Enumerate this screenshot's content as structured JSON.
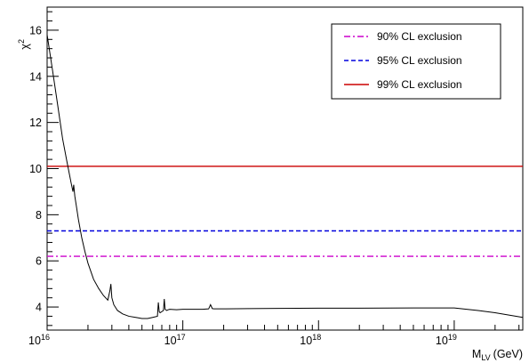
{
  "chart_data": {
    "type": "line",
    "xlabel": "M",
    "xlabel_sub": "LV",
    "xlabel_unit": "(GeV)",
    "ylabel": "χ",
    "ylabel_sup": "2",
    "x_scale": "log",
    "xlim": [
      1e+16,
      3.2e+19
    ],
    "ylim": [
      3,
      17
    ],
    "x_ticks": [
      {
        "base": "10",
        "exp": "16",
        "value": 1e+16
      },
      {
        "base": "10",
        "exp": "17",
        "value": 1e+17
      },
      {
        "base": "10",
        "exp": "18",
        "value": 1e+18
      },
      {
        "base": "10",
        "exp": "19",
        "value": 1e+19
      }
    ],
    "y_ticks": [
      {
        "label": "4",
        "value": 4
      },
      {
        "label": "6",
        "value": 6
      },
      {
        "label": "8",
        "value": 8
      },
      {
        "label": "10",
        "value": 10
      },
      {
        "label": "12",
        "value": 12
      },
      {
        "label": "14",
        "value": 14
      },
      {
        "label": "16",
        "value": 16
      }
    ],
    "grid": false,
    "legend_position": "top-right",
    "series": [
      {
        "id": "chi2",
        "color": "#000000",
        "style": "solid",
        "x": [
          1e+16,
          1.1e+16,
          1.2e+16,
          1.3e+16,
          1.4e+16,
          1.5e+16,
          1.55e+16,
          1.57e+16,
          1.6e+16,
          1.65e+16,
          1.7e+16,
          1.8e+16,
          1.9e+16,
          2e+16,
          2.2e+16,
          2.4e+16,
          2.6e+16,
          2.8e+16,
          2.9e+16,
          2.95e+16,
          3e+16,
          3.1e+16,
          3.3e+16,
          3.6e+16,
          4e+16,
          4.5e+16,
          5e+16,
          5.5e+16,
          6e+16,
          6.5e+16,
          6.6e+16,
          6.7e+16,
          6.8e+16,
          7e+16,
          7.2e+16,
          7.3e+16,
          7.4e+16,
          7.6e+16,
          7.8e+16,
          8e+16,
          9e+16,
          1e+17,
          1.2e+17,
          1.4e+17,
          1.55e+17,
          1.6e+17,
          1.65e+17,
          1.7e+17,
          2e+17,
          3e+17,
          5e+17,
          1e+18,
          2e+18,
          5e+18,
          1e+19,
          1.5e+19,
          2e+19,
          3.2e+19
        ],
        "y": [
          15.8,
          14.2,
          12.7,
          11.3,
          10.3,
          9.4,
          9.0,
          9.3,
          8.8,
          8.3,
          7.8,
          7.0,
          6.4,
          5.9,
          5.2,
          4.8,
          4.5,
          4.3,
          4.7,
          5.0,
          4.4,
          4.1,
          3.85,
          3.7,
          3.6,
          3.55,
          3.5,
          3.5,
          3.55,
          3.6,
          4.2,
          3.8,
          3.75,
          3.8,
          3.85,
          4.35,
          3.9,
          3.85,
          3.88,
          3.9,
          3.88,
          3.9,
          3.9,
          3.9,
          3.92,
          4.1,
          3.93,
          3.92,
          3.92,
          3.93,
          3.94,
          3.95,
          3.95,
          3.96,
          3.96,
          3.85,
          3.75,
          3.55
        ]
      }
    ],
    "thresholds": [
      {
        "name": "90% CL exclusion",
        "value": 6.2,
        "color": "#cc00cc",
        "style": "dashdot"
      },
      {
        "name": "95% CL exclusion",
        "value": 7.3,
        "color": "#0000dd",
        "style": "dashed"
      },
      {
        "name": "99% CL exclusion",
        "value": 10.1,
        "color": "#cc0000",
        "style": "solid"
      }
    ]
  }
}
